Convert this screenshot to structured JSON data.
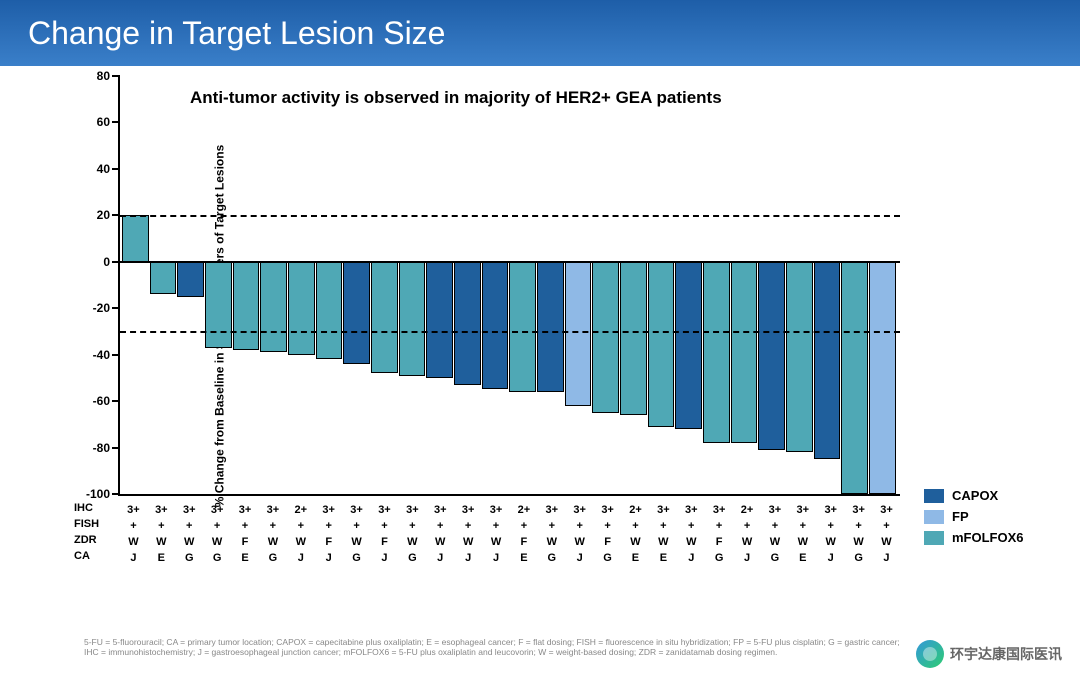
{
  "title": "Change in Target Lesion Size",
  "title_band_gradient": {
    "top": "#1e5ea8",
    "bottom": "#3a7fc9"
  },
  "subtitle": "Anti-tumor activity is observed in majority of HER2+ GEA patients",
  "y_axis_label": "% Change from Baseline in Sum of Diameters of Target Lesions",
  "y_axis": {
    "min": -100,
    "max": 80,
    "ticks": [
      -100,
      -80,
      -60,
      -40,
      -20,
      0,
      20,
      40,
      60,
      80
    ]
  },
  "ref_lines": [
    20,
    -30
  ],
  "colors": {
    "CAPOX": "#1f5f9c",
    "FP": "#8fb9e6",
    "mFOLFOX6": "#4fa8b5",
    "axis": "#000000",
    "bg": "#ffffff",
    "footnote": "#888888"
  },
  "legend": [
    {
      "label": "CAPOX",
      "color_key": "CAPOX"
    },
    {
      "label": "FP",
      "color_key": "FP"
    },
    {
      "label": "mFOLFOX6",
      "color_key": "mFOLFOX6"
    }
  ],
  "row_labels": {
    "ihc": "IHC",
    "fish": "FISH",
    "zdr": "ZDR",
    "ca": "CA"
  },
  "bars": [
    {
      "value": 20,
      "group": "mFOLFOX6",
      "ihc": "3+",
      "fish": "+",
      "zdr": "W",
      "ca": "J"
    },
    {
      "value": -14,
      "group": "mFOLFOX6",
      "ihc": "3+",
      "fish": "+",
      "zdr": "W",
      "ca": "E"
    },
    {
      "value": -15,
      "group": "CAPOX",
      "ihc": "3+",
      "fish": "+",
      "zdr": "W",
      "ca": "G"
    },
    {
      "value": -37,
      "group": "mFOLFOX6",
      "ihc": "3+",
      "fish": "+",
      "zdr": "W",
      "ca": "G"
    },
    {
      "value": -38,
      "group": "mFOLFOX6",
      "ihc": "3+",
      "fish": "+",
      "zdr": "F",
      "ca": "E"
    },
    {
      "value": -39,
      "group": "mFOLFOX6",
      "ihc": "3+",
      "fish": "+",
      "zdr": "W",
      "ca": "G"
    },
    {
      "value": -40,
      "group": "mFOLFOX6",
      "ihc": "2+",
      "fish": "+",
      "zdr": "W",
      "ca": "J"
    },
    {
      "value": -42,
      "group": "mFOLFOX6",
      "ihc": "3+",
      "fish": "+",
      "zdr": "F",
      "ca": "J"
    },
    {
      "value": -44,
      "group": "CAPOX",
      "ihc": "3+",
      "fish": "+",
      "zdr": "W",
      "ca": "G"
    },
    {
      "value": -48,
      "group": "mFOLFOX6",
      "ihc": "3+",
      "fish": "+",
      "zdr": "F",
      "ca": "J"
    },
    {
      "value": -49,
      "group": "mFOLFOX6",
      "ihc": "3+",
      "fish": "+",
      "zdr": "W",
      "ca": "G"
    },
    {
      "value": -50,
      "group": "CAPOX",
      "ihc": "3+",
      "fish": "+",
      "zdr": "W",
      "ca": "J"
    },
    {
      "value": -53,
      "group": "CAPOX",
      "ihc": "3+",
      "fish": "+",
      "zdr": "W",
      "ca": "J"
    },
    {
      "value": -55,
      "group": "CAPOX",
      "ihc": "3+",
      "fish": "+",
      "zdr": "W",
      "ca": "J"
    },
    {
      "value": -56,
      "group": "mFOLFOX6",
      "ihc": "2+",
      "fish": "+",
      "zdr": "F",
      "ca": "E"
    },
    {
      "value": -56,
      "group": "CAPOX",
      "ihc": "3+",
      "fish": "+",
      "zdr": "W",
      "ca": "G"
    },
    {
      "value": -62,
      "group": "FP",
      "ihc": "3+",
      "fish": "+",
      "zdr": "W",
      "ca": "J"
    },
    {
      "value": -65,
      "group": "mFOLFOX6",
      "ihc": "3+",
      "fish": "+",
      "zdr": "F",
      "ca": "G"
    },
    {
      "value": -66,
      "group": "mFOLFOX6",
      "ihc": "2+",
      "fish": "+",
      "zdr": "W",
      "ca": "E"
    },
    {
      "value": -71,
      "group": "mFOLFOX6",
      "ihc": "3+",
      "fish": "+",
      "zdr": "W",
      "ca": "E"
    },
    {
      "value": -72,
      "group": "CAPOX",
      "ihc": "3+",
      "fish": "+",
      "zdr": "W",
      "ca": "J"
    },
    {
      "value": -78,
      "group": "mFOLFOX6",
      "ihc": "3+",
      "fish": "+",
      "zdr": "F",
      "ca": "G"
    },
    {
      "value": -78,
      "group": "mFOLFOX6",
      "ihc": "2+",
      "fish": "+",
      "zdr": "W",
      "ca": "J"
    },
    {
      "value": -81,
      "group": "CAPOX",
      "ihc": "3+",
      "fish": "+",
      "zdr": "W",
      "ca": "G"
    },
    {
      "value": -82,
      "group": "mFOLFOX6",
      "ihc": "3+",
      "fish": "+",
      "zdr": "W",
      "ca": "E"
    },
    {
      "value": -85,
      "group": "CAPOX",
      "ihc": "3+",
      "fish": "+",
      "zdr": "W",
      "ca": "J"
    },
    {
      "value": -100,
      "group": "mFOLFOX6",
      "ihc": "3+",
      "fish": "+",
      "zdr": "W",
      "ca": "G"
    },
    {
      "value": -100,
      "group": "FP",
      "ihc": "3+",
      "fish": "+",
      "zdr": "W",
      "ca": "J"
    }
  ],
  "footnote_lines": [
    "5-FU = 5-fluorouracil; CA = primary tumor location; CAPOX = capecitabine plus oxaliplatin; E = esophageal cancer; F = flat dosing; FISH = fluorescence in situ hybridization; FP = 5-FU plus cisplatin; G = gastric cancer;",
    "IHC = immunohistochemistry; J = gastroesophageal junction cancer; mFOLFOX6 = 5-FU plus oxaliplatin and leucovorin; W = weight-based dosing; ZDR = zanidatamab dosing regimen."
  ],
  "watermark": "环宇达康国际医讯"
}
